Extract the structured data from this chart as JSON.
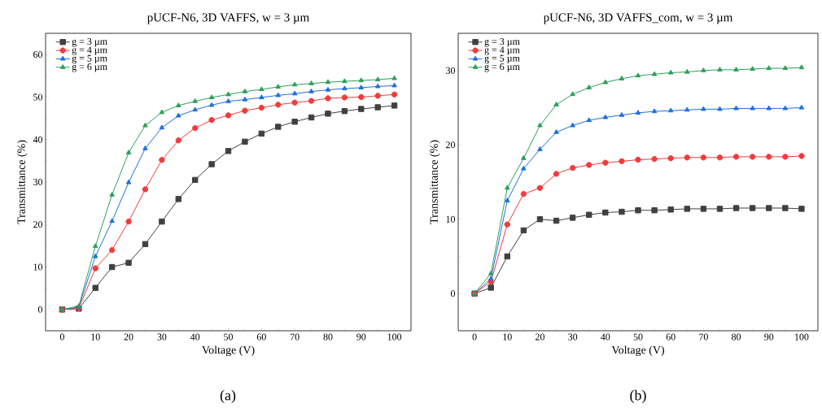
{
  "chart_data": [
    {
      "type": "line",
      "title": "pUCF-N6, 3D VAFFS, w = 3 µm",
      "xlabel": "Voltage (V)",
      "ylabel": "Transmittance (%)",
      "annotations": [
        "(a)"
      ],
      "x": [
        0,
        5,
        10,
        15,
        20,
        25,
        30,
        35,
        40,
        45,
        50,
        55,
        60,
        65,
        70,
        75,
        80,
        85,
        90,
        95,
        100
      ],
      "xlim": [
        -5,
        105
      ],
      "xticks": [
        0,
        10,
        20,
        30,
        40,
        50,
        60,
        70,
        80,
        90,
        100
      ],
      "ylim": [
        -5,
        65
      ],
      "yticks": [
        0,
        10,
        20,
        30,
        40,
        50,
        60
      ],
      "legend": "top left",
      "line_style": "solid",
      "series": [
        {
          "name": "g = 3 µm",
          "color": "#404040",
          "marker": "square",
          "values": [
            0,
            0.2,
            5.1,
            10,
            11,
            15.4,
            20.7,
            26,
            30.5,
            34.2,
            37.3,
            39.5,
            41.4,
            43,
            44.2,
            45.2,
            46.1,
            46.7,
            47.2,
            47.6,
            48
          ]
        },
        {
          "name": "g = 4 µm",
          "color": "#f03c3c",
          "marker": "circle",
          "values": [
            0,
            0.3,
            9.7,
            14,
            20.7,
            28.3,
            35.2,
            39.8,
            42.7,
            44.6,
            45.7,
            46.8,
            47.5,
            48.2,
            48.7,
            49.1,
            49.7,
            49.9,
            50,
            50.3,
            50.6
          ]
        },
        {
          "name": "g = 5 µm",
          "color": "#1f6fe0",
          "marker": "triangle",
          "values": [
            0,
            0.6,
            12.5,
            20.8,
            29.9,
            37.9,
            42.8,
            45.6,
            47,
            48.1,
            49,
            49.4,
            49.9,
            50.4,
            50.8,
            51.3,
            51.7,
            52,
            52.2,
            52.5,
            52.7
          ]
        },
        {
          "name": "g = 6 µm",
          "color": "#2ca05a",
          "marker": "triangle",
          "values": [
            0,
            0.8,
            14.9,
            27,
            36.9,
            43.3,
            46.4,
            48,
            49,
            49.9,
            50.6,
            51.3,
            51.8,
            52.4,
            52.9,
            53.2,
            53.5,
            53.7,
            53.9,
            54.1,
            54.4
          ]
        }
      ]
    },
    {
      "type": "line",
      "title": "pUCF-N6, 3D VAFFS_com, w = 3 µm",
      "xlabel": "Voltage (V)",
      "ylabel": "Transmittance (%)",
      "annotations": [
        "(b)"
      ],
      "x": [
        0,
        5,
        10,
        15,
        20,
        25,
        30,
        35,
        40,
        45,
        50,
        55,
        60,
        65,
        70,
        75,
        80,
        85,
        90,
        95,
        100
      ],
      "xlim": [
        -5,
        105
      ],
      "xticks": [
        0,
        10,
        20,
        30,
        40,
        50,
        60,
        70,
        80,
        90,
        100
      ],
      "ylim": [
        -5,
        35
      ],
      "yticks": [
        0,
        10,
        20,
        30
      ],
      "legend": "top left",
      "line_style": "solid",
      "series": [
        {
          "name": "g = 3 µm",
          "color": "#404040",
          "marker": "square",
          "values": [
            0,
            0.8,
            5,
            8.5,
            10,
            9.8,
            10.2,
            10.6,
            10.9,
            11,
            11.2,
            11.2,
            11.3,
            11.4,
            11.4,
            11.4,
            11.5,
            11.5,
            11.5,
            11.5,
            11.4
          ]
        },
        {
          "name": "g = 4 µm",
          "color": "#f03c3c",
          "marker": "circle",
          "values": [
            0,
            1.6,
            9.3,
            13.4,
            14.2,
            16.1,
            16.9,
            17.3,
            17.6,
            17.8,
            18,
            18.1,
            18.2,
            18.3,
            18.3,
            18.3,
            18.4,
            18.4,
            18.4,
            18.4,
            18.5
          ]
        },
        {
          "name": "g = 5 µm",
          "color": "#1f6fe0",
          "marker": "triangle",
          "values": [
            0,
            2,
            12.5,
            16.8,
            19.4,
            21.7,
            22.6,
            23.3,
            23.7,
            24,
            24.3,
            24.5,
            24.6,
            24.7,
            24.8,
            24.8,
            24.9,
            24.9,
            24.9,
            24.9,
            25
          ]
        },
        {
          "name": "g = 6 µm",
          "color": "#2ca05a",
          "marker": "triangle",
          "values": [
            0,
            2.7,
            14.2,
            18.2,
            22.6,
            25.4,
            26.8,
            27.7,
            28.4,
            28.9,
            29.3,
            29.5,
            29.7,
            29.8,
            30,
            30.1,
            30.1,
            30.2,
            30.3,
            30.3,
            30.4
          ]
        }
      ]
    }
  ]
}
